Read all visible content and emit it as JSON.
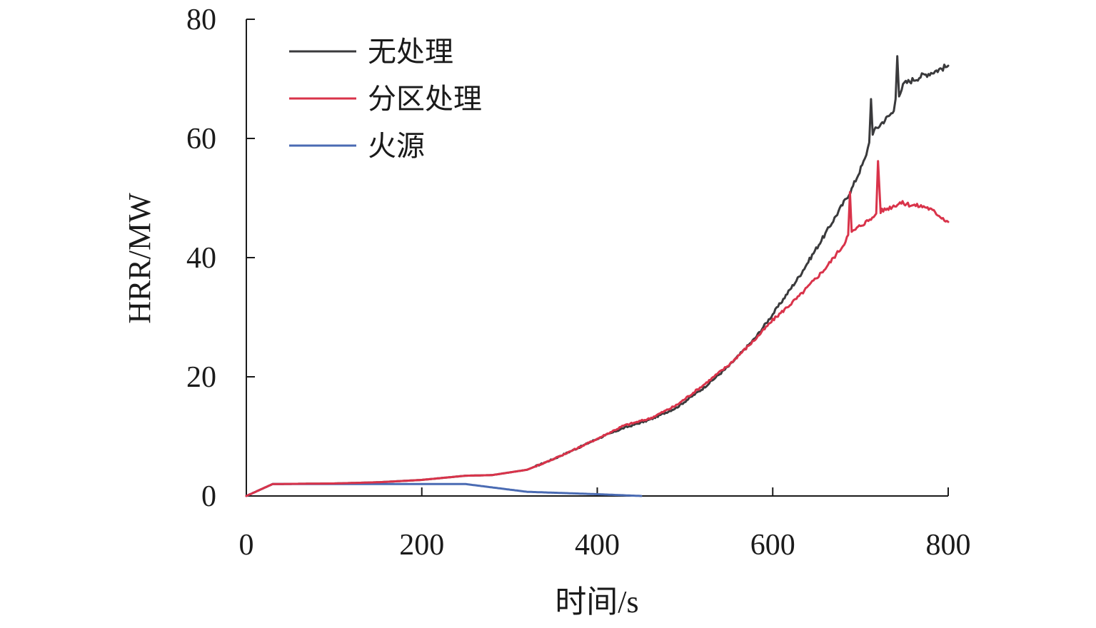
{
  "chart_data": {
    "type": "line",
    "xlabel": "时间/s",
    "ylabel": "HRR/MW",
    "xlim": [
      0,
      800
    ],
    "ylim": [
      0,
      80
    ],
    "xticks": [
      0,
      200,
      400,
      600,
      800
    ],
    "yticks": [
      0,
      20,
      40,
      60,
      80
    ],
    "grid": false,
    "legend_position": "top-left",
    "series": [
      {
        "name": "无处理",
        "color": "#3a3a3c",
        "points": [
          [
            0,
            0
          ],
          [
            30,
            2
          ],
          [
            100,
            2.1
          ],
          [
            150,
            2.3
          ],
          [
            200,
            2.7
          ],
          [
            250,
            3.4
          ],
          [
            280,
            3.5
          ],
          [
            320,
            4.4
          ],
          [
            350,
            6.2
          ],
          [
            380,
            8.2
          ],
          [
            400,
            9.6
          ],
          [
            430,
            11.4
          ],
          [
            460,
            12.8
          ],
          [
            490,
            14.8
          ],
          [
            520,
            18
          ],
          [
            550,
            21.8
          ],
          [
            580,
            26.5
          ],
          [
            600,
            30.5
          ],
          [
            630,
            36.8
          ],
          [
            660,
            44
          ],
          [
            690,
            51.5
          ],
          [
            705,
            56.5
          ],
          [
            710,
            59.3
          ],
          [
            712,
            66.6
          ],
          [
            714,
            61
          ],
          [
            725,
            62.7
          ],
          [
            738,
            64.6
          ],
          [
            740,
            66.6
          ],
          [
            742,
            73.8
          ],
          [
            744,
            67.5
          ],
          [
            750,
            69.2
          ],
          [
            770,
            70.5
          ],
          [
            785,
            71.3
          ],
          [
            800,
            72.2
          ]
        ]
      },
      {
        "name": "分区处理",
        "color": "#d9334a",
        "points": [
          [
            0,
            0
          ],
          [
            30,
            2
          ],
          [
            100,
            2.1
          ],
          [
            150,
            2.3
          ],
          [
            200,
            2.7
          ],
          [
            250,
            3.4
          ],
          [
            280,
            3.5
          ],
          [
            320,
            4.4
          ],
          [
            350,
            6.2
          ],
          [
            380,
            8.2
          ],
          [
            400,
            9.6
          ],
          [
            430,
            11.8
          ],
          [
            460,
            13
          ],
          [
            490,
            15.2
          ],
          [
            520,
            18.5
          ],
          [
            550,
            22
          ],
          [
            580,
            26.3
          ],
          [
            600,
            29.5
          ],
          [
            630,
            33.5
          ],
          [
            660,
            38.2
          ],
          [
            680,
            42
          ],
          [
            686,
            43.8
          ],
          [
            688,
            51
          ],
          [
            690,
            44.2
          ],
          [
            700,
            45.4
          ],
          [
            715,
            46.8
          ],
          [
            718,
            47.4
          ],
          [
            720,
            56.2
          ],
          [
            723,
            47.8
          ],
          [
            735,
            48.5
          ],
          [
            745,
            49.2
          ],
          [
            760,
            48.8
          ],
          [
            775,
            48.5
          ],
          [
            785,
            47.6
          ],
          [
            800,
            46
          ]
        ]
      },
      {
        "name": "火源",
        "color": "#4a6bb3",
        "points": [
          [
            0,
            0
          ],
          [
            30,
            2
          ],
          [
            250,
            2
          ],
          [
            320,
            0.7
          ],
          [
            400,
            0.3
          ],
          [
            450,
            0
          ]
        ]
      }
    ],
    "x_tick_labels": [
      "0",
      "200",
      "400",
      "600",
      "800"
    ],
    "y_tick_labels": [
      "0",
      "20",
      "40",
      "60",
      "80"
    ]
  }
}
